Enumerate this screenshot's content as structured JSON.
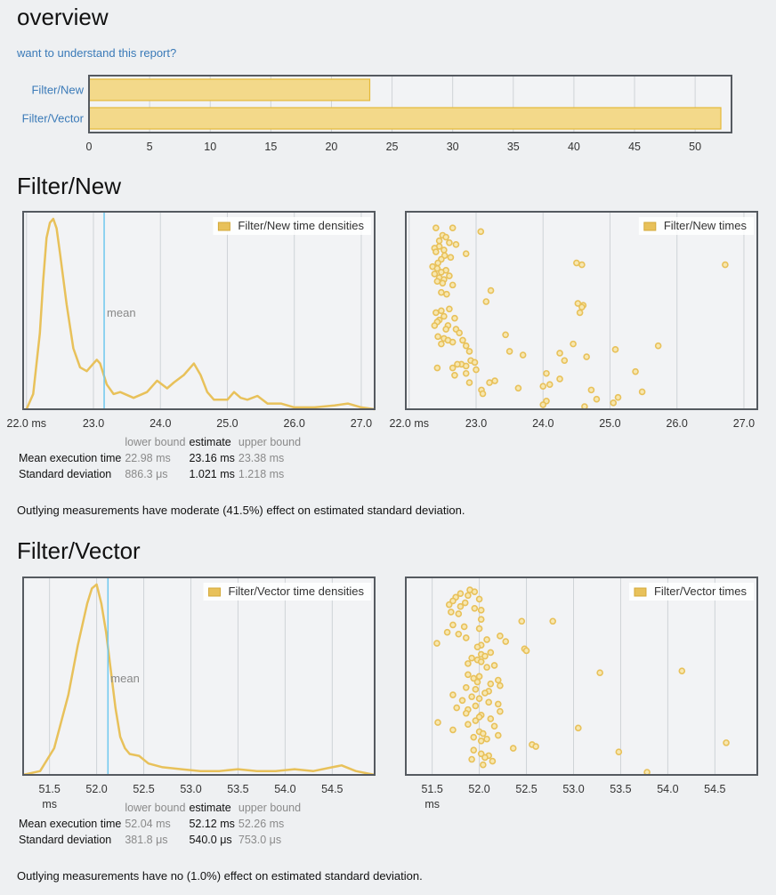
{
  "overview": {
    "title": "overview",
    "help_link": "want to understand this report?",
    "chart_data": {
      "type": "bar",
      "orientation": "horizontal",
      "categories": [
        "Filter/New",
        "Filter/Vector"
      ],
      "values": [
        23.16,
        52.12
      ],
      "xlim": [
        0,
        53
      ],
      "xticks": [
        0,
        5,
        10,
        15,
        20,
        25,
        30,
        35,
        40,
        45,
        50
      ],
      "color": "#f3d98a",
      "border_color": "#e5b93a"
    }
  },
  "stat_headers": {
    "lower": "lower bound",
    "estimate": "estimate",
    "upper": "upper bound"
  },
  "benchmarks": [
    {
      "title": "Filter/New",
      "density": {
        "type": "line",
        "legend": "Filter/New time densities",
        "mean_label": "mean",
        "mean": 23.16,
        "xlim": [
          21.95,
          27.2
        ],
        "ylim": [
          0,
          1
        ],
        "xticks": [
          22.0,
          23.0,
          24.0,
          25.0,
          26.0,
          27.0
        ],
        "tick_labels": [
          "22.0 ms",
          "23.0",
          "24.0",
          "25.0",
          "26.0",
          "27.0"
        ],
        "x": [
          22.0,
          22.1,
          22.2,
          22.25,
          22.3,
          22.35,
          22.4,
          22.45,
          22.5,
          22.6,
          22.7,
          22.8,
          22.9,
          23.0,
          23.05,
          23.1,
          23.2,
          23.3,
          23.4,
          23.6,
          23.8,
          23.95,
          24.1,
          24.2,
          24.35,
          24.5,
          24.6,
          24.7,
          24.8,
          25.0,
          25.1,
          25.2,
          25.3,
          25.45,
          25.6,
          25.8,
          26.0,
          26.3,
          26.6,
          26.8,
          27.0,
          27.2
        ],
        "y": [
          0.0,
          0.08,
          0.4,
          0.68,
          0.9,
          0.98,
          1.0,
          0.95,
          0.82,
          0.55,
          0.32,
          0.22,
          0.2,
          0.24,
          0.26,
          0.24,
          0.13,
          0.08,
          0.09,
          0.06,
          0.09,
          0.15,
          0.11,
          0.14,
          0.18,
          0.24,
          0.18,
          0.09,
          0.05,
          0.05,
          0.09,
          0.06,
          0.05,
          0.07,
          0.03,
          0.03,
          0.01,
          0.01,
          0.02,
          0.03,
          0.01,
          0.0
        ]
      },
      "times": {
        "type": "scatter",
        "legend": "Filter/New times",
        "xlim": [
          21.95,
          27.2
        ],
        "xticks": [
          22.0,
          23.0,
          24.0,
          25.0,
          26.0,
          27.0
        ],
        "tick_labels": [
          "22.0 ms",
          "23.0",
          "24.0",
          "25.0",
          "26.0",
          "27.0"
        ],
        "x": [
          22.4,
          22.5,
          22.65,
          23.07,
          22.45,
          22.55,
          22.6,
          22.7,
          22.45,
          22.38,
          22.52,
          22.4,
          22.85,
          22.53,
          22.62,
          22.48,
          22.43,
          24.5,
          24.58,
          26.72,
          22.35,
          22.42,
          22.55,
          22.48,
          22.38,
          22.6,
          22.45,
          22.52,
          22.42,
          22.5,
          22.65,
          23.22,
          22.48,
          22.56,
          23.15,
          24.52,
          24.6,
          24.58,
          24.55,
          22.4,
          22.6,
          22.48,
          22.52,
          22.68,
          22.45,
          22.42,
          22.38,
          22.58,
          22.55,
          22.7,
          22.75,
          22.43,
          23.44,
          22.52,
          22.58,
          22.8,
          22.65,
          22.85,
          22.48,
          24.45,
          23.5,
          23.7,
          24.25,
          24.65,
          25.72,
          25.08,
          22.9,
          24.32,
          22.92,
          22.98,
          22.78,
          22.85,
          22.65,
          23.0,
          22.42,
          22.72,
          22.85,
          25.38,
          24.05,
          22.68,
          23.28,
          24.25,
          23.2,
          22.9,
          24.1,
          23.63,
          24.0,
          23.08,
          24.72,
          25.48,
          23.1,
          25.12,
          24.8,
          24.05,
          25.05,
          24.0,
          24.62
        ],
        "y": [
          0.97,
          0.93,
          0.97,
          0.95,
          0.9,
          0.92,
          0.89,
          0.88,
          0.87,
          0.86,
          0.85,
          0.84,
          0.83,
          0.82,
          0.81,
          0.8,
          0.78,
          0.78,
          0.77,
          0.77,
          0.76,
          0.75,
          0.74,
          0.73,
          0.72,
          0.71,
          0.7,
          0.69,
          0.68,
          0.67,
          0.66,
          0.63,
          0.62,
          0.61,
          0.57,
          0.56,
          0.55,
          0.54,
          0.51,
          0.51,
          0.53,
          0.52,
          0.49,
          0.48,
          0.47,
          0.46,
          0.44,
          0.44,
          0.42,
          0.42,
          0.4,
          0.38,
          0.39,
          0.37,
          0.36,
          0.36,
          0.35,
          0.33,
          0.34,
          0.34,
          0.3,
          0.28,
          0.29,
          0.27,
          0.33,
          0.31,
          0.3,
          0.25,
          0.25,
          0.24,
          0.23,
          0.22,
          0.21,
          0.2,
          0.21,
          0.23,
          0.18,
          0.19,
          0.18,
          0.17,
          0.14,
          0.15,
          0.13,
          0.13,
          0.12,
          0.1,
          0.11,
          0.09,
          0.09,
          0.08,
          0.07,
          0.05,
          0.04,
          0.03,
          0.02,
          0.01,
          0.0
        ]
      },
      "stats": {
        "mean": {
          "label": "Mean execution time",
          "lower": "22.98 ms",
          "estimate": "23.16 ms",
          "upper": "23.38 ms"
        },
        "sd": {
          "label": "Standard deviation",
          "lower": "886.3 μs",
          "estimate": "1.021 ms",
          "upper": "1.218 ms"
        }
      },
      "outlier": "Outlying measurements have moderate (41.5%) effect on estimated standard deviation."
    },
    {
      "title": "Filter/Vector",
      "density": {
        "type": "line",
        "legend": "Filter/Vector time densities",
        "mean_label": "mean",
        "mean": 52.12,
        "xlim": [
          51.22,
          54.95
        ],
        "ylim": [
          0,
          1
        ],
        "xticks": [
          51.5,
          52.0,
          52.5,
          53.0,
          53.5,
          54.0,
          54.5
        ],
        "tick_labels": [
          "51.5\nms",
          "52.0",
          "52.5",
          "53.0",
          "53.5",
          "54.0",
          "54.5"
        ],
        "x": [
          51.22,
          51.4,
          51.55,
          51.7,
          51.8,
          51.9,
          51.95,
          52.0,
          52.05,
          52.1,
          52.15,
          52.2,
          52.25,
          52.3,
          52.35,
          52.45,
          52.55,
          52.7,
          52.9,
          53.1,
          53.3,
          53.5,
          53.7,
          53.9,
          54.1,
          54.3,
          54.5,
          54.6,
          54.75,
          54.95
        ],
        "y": [
          0.0,
          0.02,
          0.14,
          0.42,
          0.68,
          0.9,
          0.98,
          1.0,
          0.9,
          0.75,
          0.55,
          0.35,
          0.2,
          0.14,
          0.11,
          0.1,
          0.06,
          0.04,
          0.03,
          0.02,
          0.02,
          0.03,
          0.02,
          0.02,
          0.03,
          0.02,
          0.04,
          0.05,
          0.02,
          0.0
        ]
      },
      "times": {
        "type": "scatter",
        "legend": "Filter/Vector times",
        "xlim": [
          51.22,
          54.95
        ],
        "xticks": [
          51.5,
          52.0,
          52.5,
          53.0,
          53.5,
          54.0,
          54.5
        ],
        "tick_labels": [
          "51.5\nms",
          "52.0",
          "52.5",
          "53.0",
          "53.5",
          "54.0",
          "54.5"
        ],
        "x": [
          51.9,
          51.8,
          51.95,
          51.88,
          51.75,
          52.0,
          51.72,
          51.85,
          51.68,
          51.8,
          51.95,
          52.02,
          51.7,
          51.78,
          52.02,
          52.45,
          52.78,
          51.72,
          51.84,
          52.0,
          51.66,
          51.78,
          52.22,
          51.86,
          52.08,
          52.28,
          51.55,
          52.02,
          51.98,
          52.48,
          52.5,
          52.12,
          52.02,
          52.06,
          51.92,
          51.98,
          52.02,
          51.88,
          52.16,
          52.08,
          53.28,
          54.15,
          51.88,
          52.0,
          51.94,
          52.2,
          51.98,
          52.12,
          52.22,
          51.86,
          51.96,
          52.1,
          52.06,
          51.72,
          51.92,
          52.0,
          51.82,
          52.1,
          52.2,
          51.96,
          51.76,
          51.88,
          52.22,
          51.86,
          52.02,
          52.0,
          52.12,
          51.96,
          51.56,
          51.88,
          52.16,
          53.05,
          51.72,
          52.0,
          52.04,
          52.2,
          51.94,
          54.62,
          52.08,
          52.02,
          52.56,
          52.6,
          52.36,
          53.48,
          51.94,
          52.02,
          52.1,
          52.06,
          51.92,
          52.14,
          52.04,
          53.78
        ],
        "y": [
          0.99,
          0.97,
          0.98,
          0.96,
          0.95,
          0.94,
          0.93,
          0.92,
          0.91,
          0.9,
          0.89,
          0.88,
          0.87,
          0.86,
          0.83,
          0.82,
          0.82,
          0.8,
          0.79,
          0.78,
          0.76,
          0.75,
          0.74,
          0.73,
          0.72,
          0.71,
          0.7,
          0.69,
          0.68,
          0.67,
          0.66,
          0.65,
          0.64,
          0.63,
          0.62,
          0.61,
          0.6,
          0.59,
          0.58,
          0.57,
          0.54,
          0.55,
          0.53,
          0.52,
          0.51,
          0.5,
          0.49,
          0.48,
          0.47,
          0.46,
          0.45,
          0.44,
          0.43,
          0.42,
          0.41,
          0.4,
          0.39,
          0.38,
          0.37,
          0.36,
          0.35,
          0.34,
          0.33,
          0.32,
          0.31,
          0.3,
          0.29,
          0.28,
          0.27,
          0.26,
          0.25,
          0.24,
          0.23,
          0.22,
          0.21,
          0.2,
          0.19,
          0.16,
          0.18,
          0.17,
          0.15,
          0.14,
          0.13,
          0.11,
          0.12,
          0.1,
          0.09,
          0.08,
          0.07,
          0.06,
          0.04,
          0.0
        ]
      },
      "stats": {
        "mean": {
          "label": "Mean execution time",
          "lower": "52.04 ms",
          "estimate": "52.12 ms",
          "upper": "52.26 ms"
        },
        "sd": {
          "label": "Standard deviation",
          "lower": "381.8 μs",
          "estimate": "540.0 μs",
          "upper": "753.0 μs"
        }
      },
      "outlier": "Outlying measurements have no (1.0%) effect on estimated standard deviation."
    }
  ]
}
